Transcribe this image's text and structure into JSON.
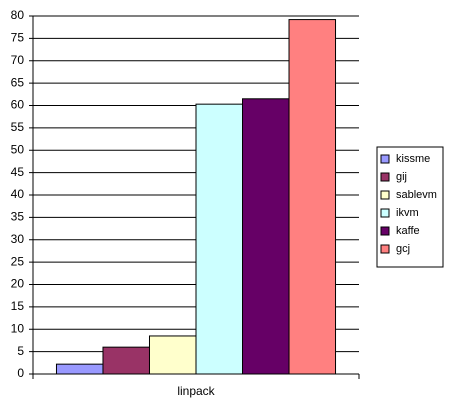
{
  "chart_data": {
    "type": "bar",
    "categories": [
      "linpack"
    ],
    "series": [
      {
        "name": "kissme",
        "color": "#9999ff",
        "values": [
          2.2
        ]
      },
      {
        "name": "gij",
        "color": "#993366",
        "values": [
          6
        ]
      },
      {
        "name": "sablevm",
        "color": "#ffffcc",
        "values": [
          8.5
        ]
      },
      {
        "name": "ikvm",
        "color": "#ccffff",
        "values": [
          60.3
        ]
      },
      {
        "name": "kaffe",
        "color": "#660066",
        "values": [
          61.5
        ]
      },
      {
        "name": "gcj",
        "color": "#ff8080",
        "values": [
          79.2
        ]
      }
    ],
    "ylim": [
      0,
      80
    ],
    "yticks": [
      0,
      5,
      10,
      15,
      20,
      25,
      30,
      35,
      40,
      45,
      50,
      55,
      60,
      65,
      70,
      75,
      80
    ],
    "grid": true,
    "legend": "right"
  }
}
